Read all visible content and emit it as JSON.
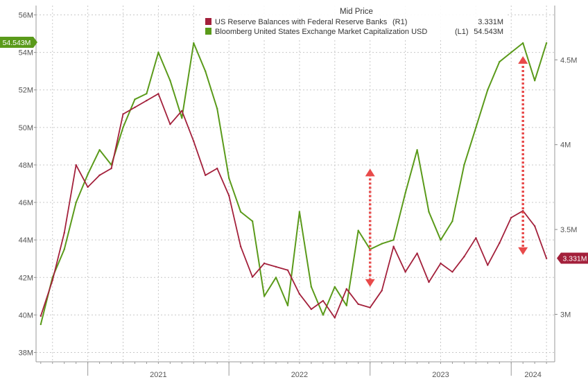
{
  "chart_data": {
    "type": "line",
    "title": "Mid Price",
    "x_tick_labels": [
      "2021",
      "2022",
      "2023",
      "2024"
    ],
    "y_left": {
      "ylim": [
        37.5,
        56.5
      ],
      "ticks": [
        38,
        40,
        42,
        44,
        46,
        48,
        50,
        52,
        54,
        56
      ],
      "tick_labels": [
        "38M",
        "40M",
        "42M",
        "44M",
        "46M",
        "48M",
        "50M",
        "52M",
        "54M",
        "56M"
      ]
    },
    "y_right": {
      "ylim": [
        2.72,
        4.82
      ],
      "ticks": [
        3.0,
        3.5,
        4.0,
        4.5
      ],
      "tick_labels": [
        "3M",
        "3.5M",
        "4M",
        "4.5M"
      ]
    },
    "grid": true,
    "legend_position": "top-right",
    "colors": {
      "reserves": "#a3203b",
      "market_cap": "#5a9a1a",
      "arrow": "#e84a4a",
      "grid": "#c8c8c8"
    },
    "series": [
      {
        "name": "US Reserve Balances with Federal Reserve Banks",
        "axis": "right",
        "legend_tag": "(R1)",
        "last_value": "3.331M",
        "x": [
          "2020-09",
          "2020-10",
          "2020-11",
          "2020-12",
          "2021-01",
          "2021-02",
          "2021-03",
          "2021-04",
          "2021-05",
          "2021-06",
          "2021-07",
          "2021-08",
          "2021-09",
          "2021-10",
          "2021-11",
          "2021-12",
          "2022-01",
          "2022-02",
          "2022-03",
          "2022-04",
          "2022-05",
          "2022-06",
          "2022-07",
          "2022-08",
          "2022-09",
          "2022-10",
          "2022-11",
          "2022-12",
          "2023-01",
          "2023-02",
          "2023-03",
          "2023-04",
          "2023-05",
          "2023-06",
          "2023-07",
          "2023-08",
          "2023-09",
          "2023-10",
          "2023-11",
          "2023-12",
          "2024-01",
          "2024-02",
          "2024-03",
          "2024-04"
        ],
        "values": [
          2.99,
          3.2,
          3.48,
          3.88,
          3.75,
          3.82,
          3.86,
          4.18,
          4.22,
          4.26,
          4.3,
          4.12,
          4.2,
          4.02,
          3.82,
          3.86,
          3.7,
          3.4,
          3.22,
          3.3,
          3.28,
          3.26,
          3.12,
          3.03,
          3.08,
          2.98,
          3.15,
          3.06,
          3.04,
          3.14,
          3.4,
          3.25,
          3.36,
          3.19,
          3.3,
          3.25,
          3.34,
          3.45,
          3.29,
          3.42,
          3.57,
          3.61,
          3.52,
          3.33
        ]
      },
      {
        "name": "Bloomberg United States Exchange Market Capitalization USD",
        "axis": "left",
        "legend_tag": "(L1)",
        "last_value": "54.543M",
        "x": [
          "2020-09",
          "2020-10",
          "2020-11",
          "2020-12",
          "2021-01",
          "2021-02",
          "2021-03",
          "2021-04",
          "2021-05",
          "2021-06",
          "2021-07",
          "2021-08",
          "2021-09",
          "2021-10",
          "2021-11",
          "2021-12",
          "2022-01",
          "2022-02",
          "2022-03",
          "2022-04",
          "2022-05",
          "2022-06",
          "2022-07",
          "2022-08",
          "2022-09",
          "2022-10",
          "2022-11",
          "2022-12",
          "2023-01",
          "2023-02",
          "2023-03",
          "2023-04",
          "2023-05",
          "2023-06",
          "2023-07",
          "2023-08",
          "2023-09",
          "2023-10",
          "2023-11",
          "2023-12",
          "2024-01",
          "2024-02",
          "2024-03",
          "2024-04"
        ],
        "values": [
          39.5,
          42.0,
          43.5,
          46.0,
          47.5,
          48.8,
          48.0,
          50.0,
          51.5,
          51.8,
          54.0,
          52.5,
          50.5,
          54.5,
          53.0,
          51.0,
          47.3,
          45.5,
          45.0,
          41.0,
          42.0,
          40.5,
          45.5,
          41.5,
          40.0,
          41.5,
          40.5,
          44.5,
          43.5,
          43.8,
          44.0,
          46.5,
          48.8,
          45.5,
          44.0,
          45.0,
          48.0,
          50.0,
          52.0,
          53.5,
          54.0,
          54.5,
          52.5,
          54.5
        ]
      }
    ],
    "annotations": [
      {
        "type": "double-arrow",
        "x": "2023-01",
        "y_from": 41.5,
        "y_to": 47.8,
        "axis": "left"
      },
      {
        "type": "double-arrow",
        "x": "2024-02",
        "y_from": 43.2,
        "y_to": 53.8,
        "axis": "left"
      }
    ],
    "value_badges": [
      {
        "series": 1,
        "text": "54.543M",
        "side": "left",
        "value": 54.543
      },
      {
        "series": 0,
        "text": "3.331M",
        "side": "right",
        "value": 3.331
      }
    ]
  }
}
